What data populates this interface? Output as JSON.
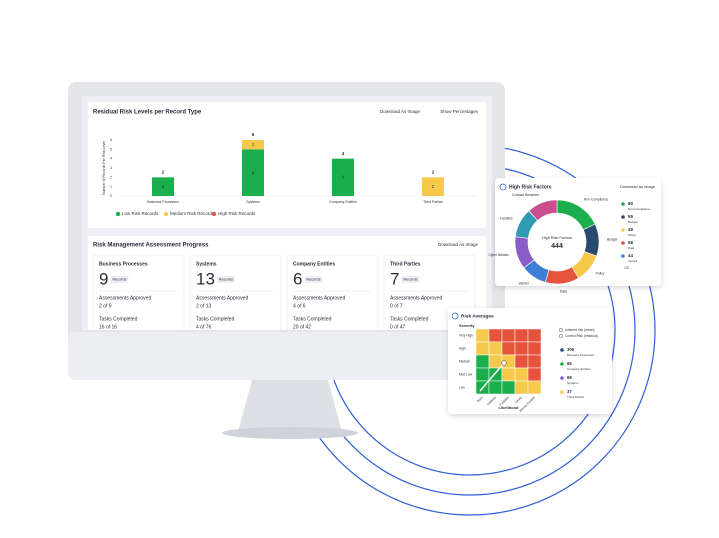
{
  "chart_data": [
    {
      "type": "bar",
      "title": "Residual Risk Levels per Record Type",
      "actions": [
        "Download As Image",
        "Show Percentages"
      ],
      "y_label": "Number of Records Per Risk Level",
      "categories": [
        "Business Processes",
        "Systems",
        "Company Entities",
        "Third Parties"
      ],
      "series": [
        {
          "name": "Low Risk Records",
          "color": "#1aae4c",
          "values": [
            2,
            5,
            4,
            0
          ]
        },
        {
          "name": "Medium Risk Records",
          "color": "#f7c94a",
          "values": [
            0,
            1,
            0,
            2
          ]
        },
        {
          "name": "High Risk Records",
          "color": "#e5533d",
          "values": [
            0,
            0,
            0,
            0
          ]
        }
      ],
      "totals": [
        2,
        6,
        4,
        2
      ],
      "ylim": [
        0,
        6
      ],
      "yticks": [
        0,
        1,
        2,
        3,
        4,
        5,
        6
      ]
    },
    {
      "type": "pie",
      "title": "High Risk Factors",
      "action": "Download as image",
      "center_label": "High Risk Factors",
      "total": 444,
      "categories": [
        "Non-Compliance",
        "Budget",
        "Policy",
        "Data",
        "Vendor",
        "Cyber Attacks",
        "Facilities",
        "Contract Breaches"
      ],
      "values": [
        80,
        55,
        49,
        58,
        44,
        56,
        50,
        52
      ],
      "colors": [
        "#1aae4c",
        "#2b4a6f",
        "#f7c94a",
        "#e5533d",
        "#3b7fd6",
        "#8a5cc9",
        "#2f9bb0",
        "#c94f8f"
      ],
      "legend_count": 5,
      "legend_page": "1/2"
    }
  ],
  "assessment": {
    "title": "Risk Management Assessment Progress",
    "action": "Download As Image",
    "cards": [
      {
        "name": "Business Processes",
        "count": "9",
        "unit": "Records",
        "approved_label": "Assessments Approved",
        "approved": "2 of 9",
        "tasks_label": "Tasks Completed",
        "tasks": "16 of 16"
      },
      {
        "name": "Systems",
        "count": "13",
        "unit": "Records",
        "approved_label": "Assessments Approved",
        "approved": "2 of 13",
        "tasks_label": "Tasks Completed",
        "tasks": "4 of 76"
      },
      {
        "name": "Company Entities",
        "count": "6",
        "unit": "Records",
        "approved_label": "Assessments Approved",
        "approved": "4 of 6",
        "tasks_label": "Tasks Completed",
        "tasks": "20 of 42"
      },
      {
        "name": "Third Parties",
        "count": "7",
        "unit": "Records",
        "approved_label": "Assessments Approved",
        "approved": "0 of 7",
        "tasks_label": "Tasks Completed",
        "tasks": "0 of 47"
      }
    ]
  },
  "risk_averages": {
    "title": "Risk Averages",
    "y_title": "Severity",
    "rows": [
      "Very High",
      "High",
      "Medium",
      "Med Low",
      "Low"
    ],
    "x_title": "Likelihood",
    "columns": [
      "Rare",
      "Unlikely",
      "Possible",
      "Likely",
      "Almost Certain"
    ],
    "markers": [
      "Inherent risk (mean)",
      "Control Risk (residual)"
    ],
    "counts": [
      {
        "value": "300",
        "name": "Business Processes",
        "color": "#2b4a6f"
      },
      {
        "value": "66",
        "name": "Company Entities",
        "color": "#1aae4c"
      },
      {
        "value": "68",
        "name": "Systems",
        "color": "#8a5cc9"
      },
      {
        "value": "37",
        "name": "Third Parties",
        "color": "#f7c94a"
      }
    ]
  }
}
